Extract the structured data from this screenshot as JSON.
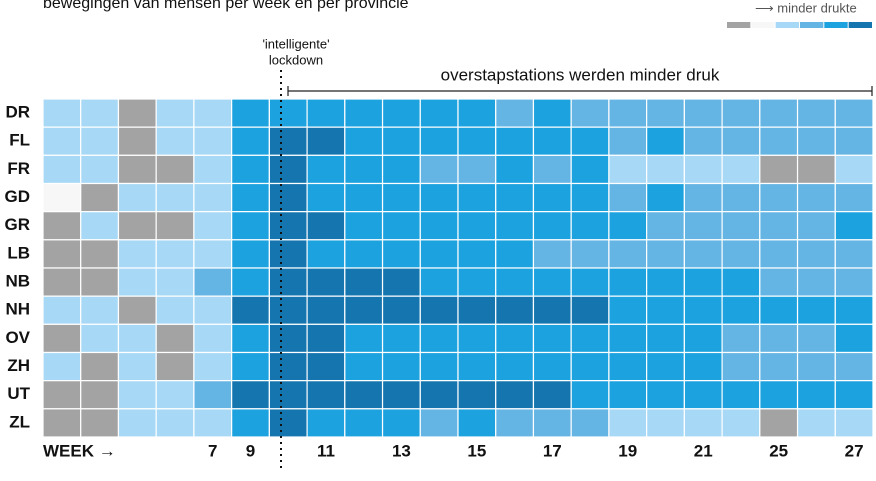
{
  "chart_data": {
    "type": "heatmap",
    "title": "bewegingen van mensen per week en per provincie",
    "legend_label": "⟶ minder drukte",
    "colors": [
      "#a3a3a3",
      "#f7f7f7",
      "#a7d8f5",
      "#64b4e4",
      "#1ca2df",
      "#1575ae"
    ],
    "rows": [
      "DR",
      "FL",
      "FR",
      "GD",
      "GR",
      "LB",
      "NB",
      "NH",
      "OV",
      "ZH",
      "UT",
      "ZL"
    ],
    "categories": [
      "WEEK →",
      null,
      null,
      null,
      "7",
      "9",
      null,
      "11",
      null,
      "13",
      null,
      "15",
      null,
      "17",
      null,
      "19",
      null,
      "21",
      null,
      "25",
      null,
      "27"
    ],
    "values": [
      [
        2,
        2,
        0,
        2,
        2,
        4,
        4,
        4,
        4,
        4,
        4,
        4,
        3,
        4,
        3,
        3,
        3,
        3,
        3,
        3,
        3,
        3
      ],
      [
        2,
        2,
        0,
        2,
        2,
        4,
        5,
        5,
        4,
        4,
        4,
        4,
        4,
        4,
        4,
        3,
        4,
        3,
        3,
        3,
        3,
        3
      ],
      [
        2,
        2,
        0,
        0,
        2,
        4,
        5,
        4,
        4,
        4,
        3,
        3,
        4,
        3,
        4,
        2,
        2,
        2,
        2,
        0,
        0,
        2
      ],
      [
        1,
        0,
        2,
        2,
        2,
        4,
        5,
        4,
        4,
        4,
        4,
        4,
        4,
        4,
        4,
        3,
        4,
        3,
        3,
        3,
        3,
        3
      ],
      [
        0,
        2,
        0,
        0,
        2,
        4,
        5,
        5,
        4,
        4,
        4,
        4,
        4,
        4,
        4,
        4,
        3,
        3,
        3,
        3,
        3,
        4
      ],
      [
        0,
        0,
        2,
        2,
        2,
        4,
        5,
        4,
        4,
        4,
        4,
        4,
        4,
        3,
        3,
        3,
        3,
        3,
        3,
        3,
        3,
        3
      ],
      [
        0,
        0,
        2,
        2,
        3,
        4,
        5,
        5,
        5,
        5,
        4,
        4,
        4,
        4,
        4,
        4,
        4,
        4,
        4,
        3,
        3,
        3
      ],
      [
        2,
        2,
        0,
        2,
        2,
        5,
        5,
        5,
        5,
        5,
        5,
        5,
        5,
        5,
        5,
        4,
        4,
        4,
        4,
        4,
        4,
        4
      ],
      [
        0,
        2,
        2,
        0,
        2,
        4,
        5,
        5,
        4,
        4,
        4,
        4,
        4,
        4,
        4,
        4,
        4,
        4,
        3,
        3,
        3,
        4
      ],
      [
        2,
        0,
        2,
        0,
        2,
        4,
        5,
        5,
        4,
        4,
        4,
        4,
        4,
        4,
        4,
        4,
        4,
        4,
        3,
        3,
        3,
        3
      ],
      [
        0,
        0,
        2,
        2,
        3,
        5,
        5,
        5,
        5,
        5,
        5,
        5,
        5,
        5,
        4,
        4,
        4,
        4,
        4,
        4,
        4,
        4
      ],
      [
        0,
        0,
        2,
        2,
        2,
        4,
        5,
        4,
        4,
        4,
        3,
        4,
        3,
        3,
        3,
        2,
        2,
        2,
        2,
        0,
        2,
        2
      ]
    ],
    "annotations": [
      "'intelligente'",
      "lockdown",
      "overstapstations werden minder druk"
    ]
  }
}
